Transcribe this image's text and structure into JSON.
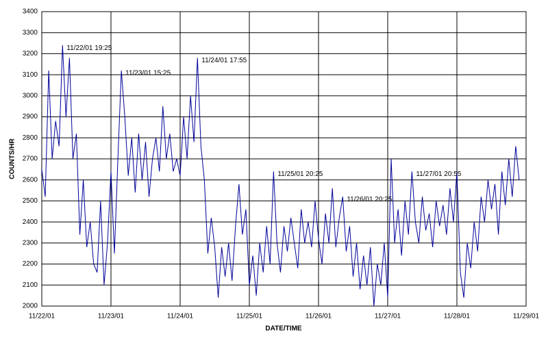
{
  "chart_data": {
    "type": "line",
    "x_label": "DATE/TIME",
    "y_label": "COUNTS/HR",
    "color": "#000099",
    "grid": true,
    "xlim": [
      0,
      7
    ],
    "ylim": [
      2000,
      3400
    ],
    "xticks": [
      {
        "value": 0,
        "label": "11/22/01"
      },
      {
        "value": 1,
        "label": "11/23/01"
      },
      {
        "value": 2,
        "label": "11/24/01"
      },
      {
        "value": 3,
        "label": "11/25/01"
      },
      {
        "value": 4,
        "label": "11/26/01"
      },
      {
        "value": 5,
        "label": "11/27/01"
      },
      {
        "value": 6,
        "label": "11/28/01"
      },
      {
        "value": 7,
        "label": "11/29/01"
      }
    ],
    "yticks": [
      2000,
      2100,
      2200,
      2300,
      2400,
      2500,
      2600,
      2700,
      2800,
      2900,
      3000,
      3100,
      3200,
      3300,
      3400
    ],
    "x": [
      0,
      0.05,
      0.1,
      0.15,
      0.2,
      0.25,
      0.3,
      0.35,
      0.4,
      0.45,
      0.5,
      0.55,
      0.6,
      0.65,
      0.7,
      0.75,
      0.8,
      0.85,
      0.9,
      0.95,
      1,
      1.05,
      1.1,
      1.15,
      1.2,
      1.25,
      1.3,
      1.35,
      1.4,
      1.45,
      1.5,
      1.55,
      1.6,
      1.65,
      1.7,
      1.75,
      1.8,
      1.85,
      1.9,
      1.95,
      2,
      2.05,
      2.1,
      2.15,
      2.2,
      2.25,
      2.3,
      2.35,
      2.4,
      2.45,
      2.5,
      2.55,
      2.6,
      2.65,
      2.7,
      2.75,
      2.8,
      2.85,
      2.9,
      2.95,
      3,
      3.05,
      3.1,
      3.15,
      3.2,
      3.25,
      3.3,
      3.35,
      3.4,
      3.45,
      3.5,
      3.55,
      3.6,
      3.65,
      3.7,
      3.75,
      3.8,
      3.85,
      3.9,
      3.95,
      4,
      4.05,
      4.1,
      4.15,
      4.2,
      4.25,
      4.3,
      4.35,
      4.4,
      4.45,
      4.5,
      4.55,
      4.6,
      4.65,
      4.7,
      4.75,
      4.8,
      4.85,
      4.9,
      4.95,
      5,
      5.05,
      5.1,
      5.15,
      5.2,
      5.25,
      5.3,
      5.35,
      5.4,
      5.45,
      5.5,
      5.55,
      5.6,
      5.65,
      5.7,
      5.75,
      5.8,
      5.85,
      5.9,
      5.95,
      6,
      6.05,
      6.1,
      6.15,
      6.2,
      6.25,
      6.3,
      6.35,
      6.4,
      6.45,
      6.5,
      6.55,
      6.6,
      6.65,
      6.7,
      6.75,
      6.8,
      6.85,
      6.9
    ],
    "values": [
      2650,
      2520,
      3120,
      2700,
      2880,
      2760,
      3240,
      2900,
      3180,
      2700,
      2820,
      2340,
      2600,
      2280,
      2400,
      2200,
      2160,
      2500,
      2100,
      2300,
      2640,
      2250,
      2700,
      3120,
      2900,
      2620,
      2800,
      2540,
      2820,
      2600,
      2780,
      2520,
      2700,
      2800,
      2640,
      2950,
      2700,
      2820,
      2640,
      2700,
      2620,
      2900,
      2700,
      3000,
      2780,
      3180,
      2760,
      2600,
      2250,
      2420,
      2280,
      2040,
      2280,
      2140,
      2300,
      2120,
      2380,
      2580,
      2340,
      2460,
      2100,
      2240,
      2050,
      2300,
      2160,
      2380,
      2200,
      2640,
      2300,
      2160,
      2380,
      2260,
      2420,
      2300,
      2180,
      2460,
      2300,
      2400,
      2280,
      2500,
      2320,
      2200,
      2440,
      2300,
      2560,
      2280,
      2420,
      2520,
      2260,
      2380,
      2140,
      2300,
      2080,
      2240,
      2100,
      2280,
      2000,
      2200,
      2100,
      2300,
      2040,
      2700,
      2300,
      2460,
      2240,
      2500,
      2340,
      2640,
      2400,
      2300,
      2520,
      2360,
      2440,
      2280,
      2500,
      2380,
      2480,
      2340,
      2560,
      2400,
      2640,
      2160,
      2040,
      2300,
      2180,
      2400,
      2260,
      2520,
      2400,
      2600,
      2460,
      2580,
      2340,
      2640,
      2480,
      2700,
      2520,
      2760,
      2600
    ],
    "annotations": [
      {
        "label": "11/22/01 19:25",
        "x": 0.3,
        "y": 3240
      },
      {
        "label": "11/23/01 15:25",
        "x": 1.15,
        "y": 3120
      },
      {
        "label": "11/24/01 17:55",
        "x": 2.25,
        "y": 3180
      },
      {
        "label": "11/25/01 20:25",
        "x": 3.35,
        "y": 2640
      },
      {
        "label": "11/26/01 20:25",
        "x": 4.35,
        "y": 2520
      },
      {
        "label": "11/27/01 20:55",
        "x": 5.35,
        "y": 2640
      }
    ]
  }
}
